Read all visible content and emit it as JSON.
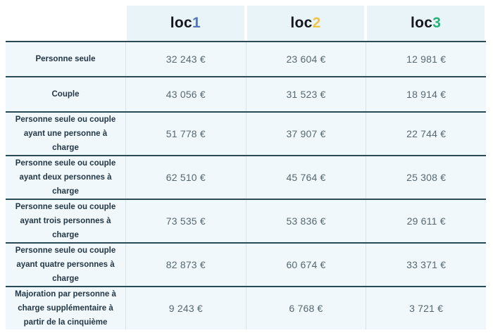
{
  "table": {
    "columns": [
      {
        "prefix": "loc",
        "digit": "1",
        "digit_color": "#5377b6"
      },
      {
        "prefix": "loc",
        "digit": "2",
        "digit_color": "#f0c34e"
      },
      {
        "prefix": "loc",
        "digit": "3",
        "digit_color": "#27b377"
      }
    ],
    "rows": [
      {
        "label": "Personne seule",
        "values": [
          "32 243 €",
          "23 604 €",
          "12 981 €"
        ]
      },
      {
        "label": "Couple",
        "values": [
          "43 056 €",
          "31 523 €",
          "18 914 €"
        ]
      },
      {
        "label": "Personne seule ou couple ayant une personne à charge",
        "values": [
          "51 778 €",
          "37 907 €",
          "22 744 €"
        ]
      },
      {
        "label": "Personne seule ou couple ayant deux personnes à charge",
        "values": [
          "62 510 €",
          "45 764 €",
          "25 308 €"
        ]
      },
      {
        "label": "Personne seule ou couple ayant trois personnes à charge",
        "values": [
          "73 535 €",
          "53 836 €",
          "29 611 €"
        ]
      },
      {
        "label": "Personne seule ou couple ayant quatre personnes à charge",
        "values": [
          "82 873 €",
          "60 674 €",
          "33 371 €"
        ]
      },
      {
        "label": "Majoration par personne à charge supplémentaire à partir de la cinquième",
        "values": [
          "9 243 €",
          "6 768 €",
          "3 721 €"
        ]
      }
    ]
  },
  "colors": {
    "header_cell_background": "#e9f4f9",
    "body_cell_background": "#f1f8fb",
    "row_border": "#2b4a57",
    "column_separator": "#d9e3e8",
    "label_text": "#233746",
    "value_text": "#556872",
    "loc_text": "#14161b",
    "loc1_digit": "#5377b6",
    "loc2_digit": "#f0c34e",
    "loc3_digit": "#27b377"
  },
  "chart_data": {
    "type": "table",
    "title": "",
    "columns": [
      "",
      "loc1",
      "loc2",
      "loc3"
    ],
    "row_labels": [
      "Personne seule",
      "Couple",
      "Personne seule ou couple ayant une personne à charge",
      "Personne seule ou couple ayant deux personnes à charge",
      "Personne seule ou couple ayant trois personnes à charge",
      "Personne seule ou couple ayant quatre personnes à charge",
      "Majoration par personne à charge supplémentaire à partir de la cinquième"
    ],
    "series": [
      {
        "name": "loc1",
        "values": [
          32243,
          43056,
          51778,
          62510,
          73535,
          82873,
          9243
        ]
      },
      {
        "name": "loc2",
        "values": [
          23604,
          31523,
          37907,
          45764,
          53836,
          60674,
          6768
        ]
      },
      {
        "name": "loc3",
        "values": [
          12981,
          18914,
          22744,
          25308,
          29611,
          33371,
          3721
        ]
      }
    ],
    "unit": "€"
  }
}
